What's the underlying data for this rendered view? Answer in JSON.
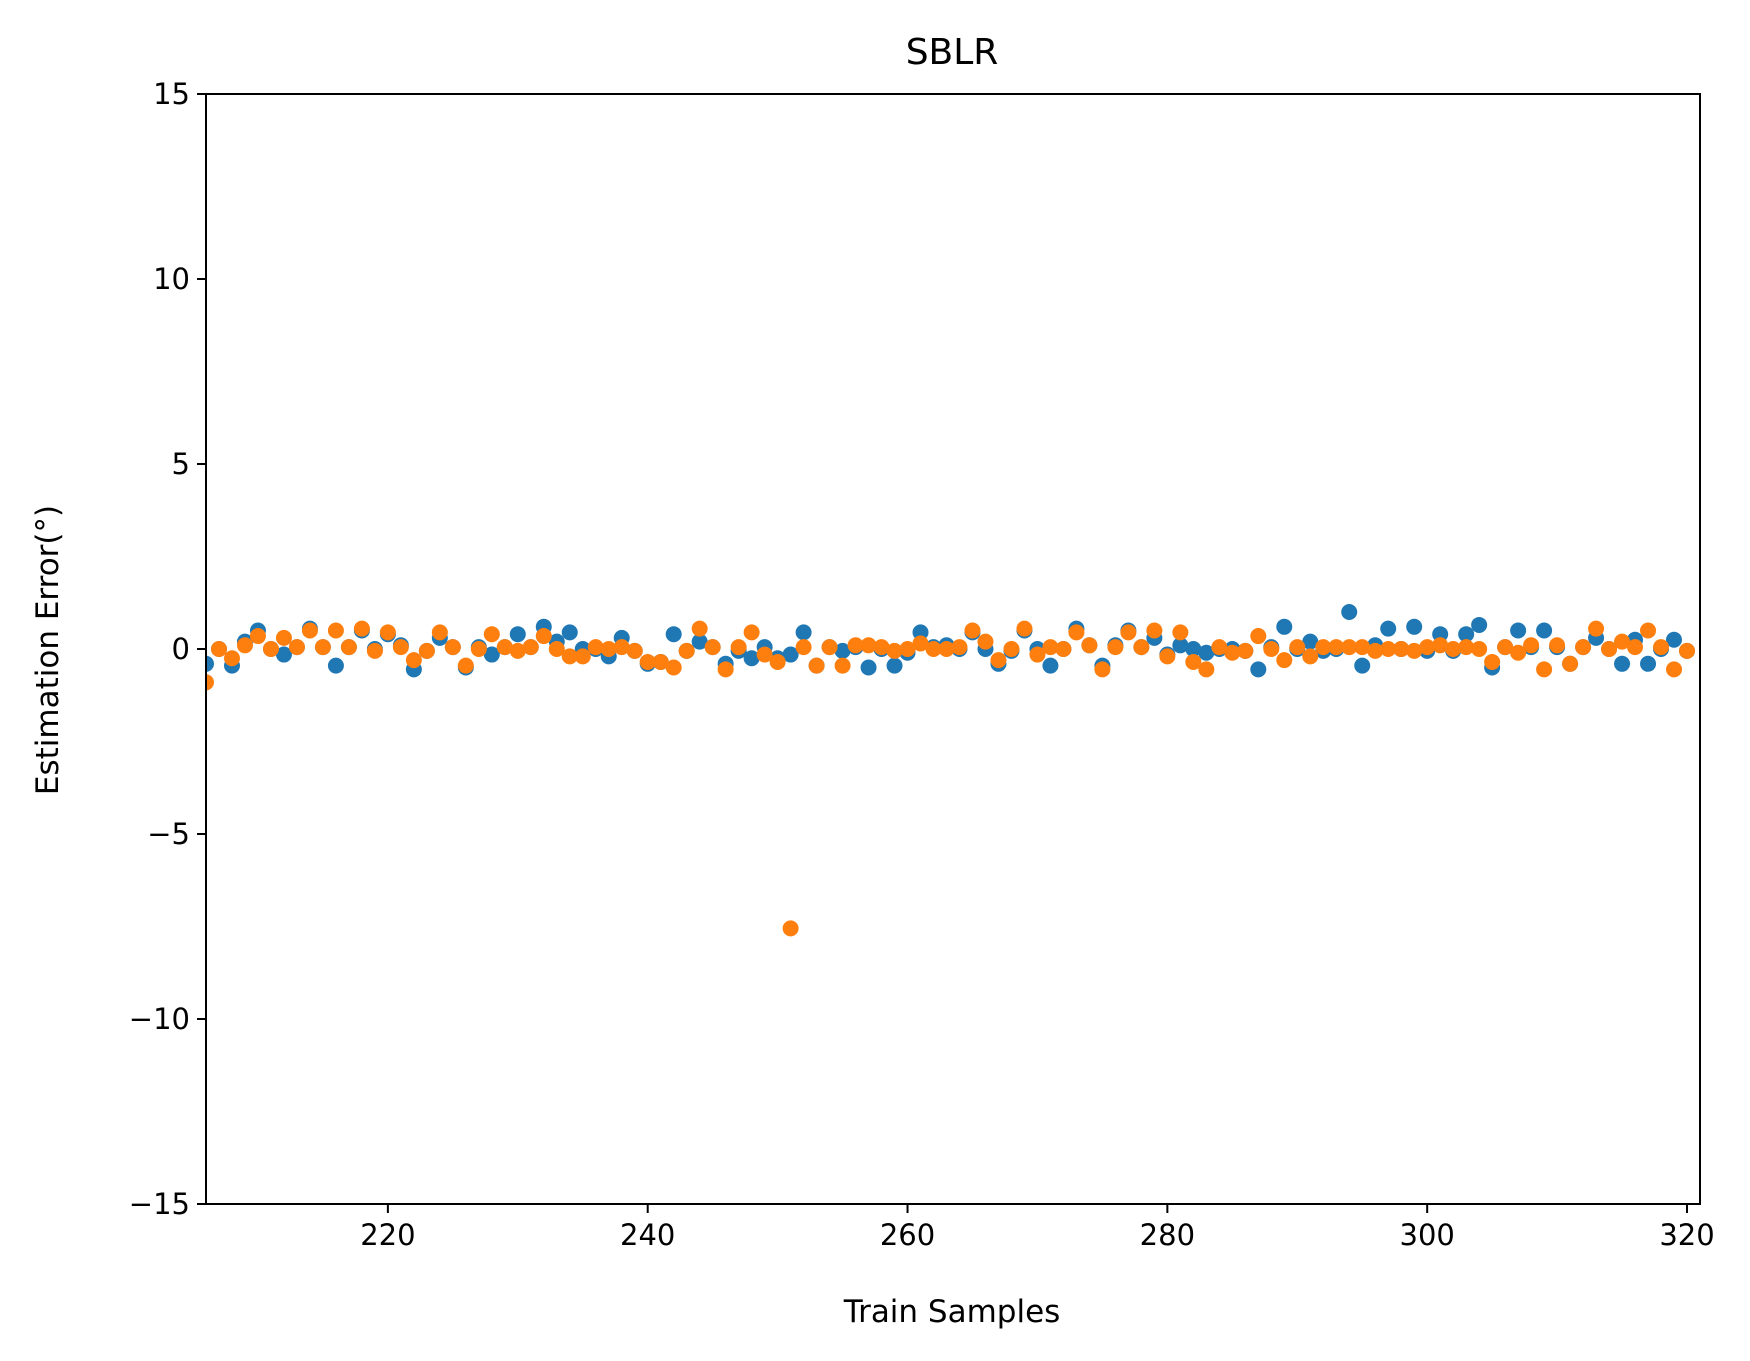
{
  "chart_data": {
    "type": "scatter",
    "title": "SBLR",
    "xlabel": "Train Samples",
    "ylabel": "Estimation Error(°)",
    "xlim": [
      206,
      321
    ],
    "ylim": [
      -15,
      15
    ],
    "x_ticks": [
      220,
      240,
      260,
      280,
      300,
      320
    ],
    "y_ticks": [
      15,
      10,
      5,
      0,
      -5,
      -10,
      -15
    ],
    "x_tick_labels": [
      "220",
      "240",
      "260",
      "280",
      "300",
      "320"
    ],
    "y_tick_labels": [
      "15",
      "10",
      "5",
      "0",
      "−5",
      "−10",
      "−15"
    ],
    "grid": false,
    "legend": false,
    "series": [
      {
        "color": "#1f77b4",
        "x": [
          206,
          207,
          208,
          209,
          210,
          211,
          212,
          213,
          214,
          215,
          216,
          217,
          218,
          219,
          220,
          221,
          222,
          223,
          224,
          225,
          226,
          227,
          228,
          229,
          230,
          231,
          232,
          233,
          234,
          235,
          236,
          237,
          238,
          239,
          240,
          241,
          242,
          243,
          244,
          245,
          246,
          247,
          248,
          249,
          250,
          251,
          252,
          253,
          254,
          255,
          256,
          257,
          258,
          259,
          260,
          261,
          262,
          263,
          264,
          265,
          266,
          267,
          268,
          269,
          270,
          271,
          272,
          273,
          274,
          275,
          276,
          277,
          278,
          279,
          280,
          281,
          282,
          283,
          284,
          285,
          286,
          287,
          288,
          289,
          290,
          291,
          292,
          293,
          294,
          295,
          296,
          297,
          298,
          299,
          300,
          301,
          302,
          303,
          304,
          305,
          306,
          307,
          308,
          309,
          310,
          311,
          312,
          313,
          314,
          315,
          316,
          317,
          318,
          319,
          320
        ],
        "y": [
          -0.4,
          0.0,
          -0.45,
          0.2,
          0.5,
          0.0,
          -0.15,
          0.05,
          0.55,
          0.05,
          -0.45,
          0.05,
          0.5,
          0.0,
          0.4,
          0.1,
          -0.55,
          -0.05,
          0.3,
          0.05,
          -0.5,
          0.05,
          -0.15,
          0.05,
          0.4,
          0.05,
          0.6,
          0.2,
          0.45,
          0.0,
          0.0,
          -0.2,
          0.3,
          -0.05,
          -0.4,
          -0.35,
          0.4,
          -0.05,
          0.2,
          0.05,
          -0.4,
          -0.05,
          -0.25,
          0.05,
          -0.25,
          -0.15,
          0.45,
          -0.45,
          0.05,
          -0.05,
          0.05,
          -0.5,
          0.0,
          -0.45,
          -0.1,
          0.45,
          0.05,
          0.1,
          0.0,
          0.45,
          0.0,
          -0.4,
          -0.05,
          0.5,
          0.0,
          -0.45,
          0.0,
          0.55,
          0.1,
          -0.45,
          0.1,
          0.5,
          0.05,
          0.3,
          -0.15,
          0.1,
          0.0,
          -0.1,
          0.0,
          0.0,
          -0.05,
          -0.55,
          0.05,
          0.6,
          0.0,
          0.2,
          -0.05,
          0.0,
          1.0,
          -0.45,
          0.1,
          0.55,
          0.0,
          0.6,
          -0.05,
          0.4,
          -0.05,
          0.4,
          0.65,
          -0.5,
          0.05,
          0.5,
          0.05,
          0.5,
          0.05,
          -0.4,
          0.05,
          0.3,
          0.0,
          -0.4,
          0.25,
          -0.4,
          0.0,
          0.25,
          -0.05
        ]
      },
      {
        "color": "#ff7f0e",
        "x": [
          206,
          207,
          208,
          209,
          210,
          211,
          212,
          213,
          214,
          215,
          216,
          217,
          218,
          219,
          220,
          221,
          222,
          223,
          224,
          225,
          226,
          227,
          228,
          229,
          230,
          231,
          232,
          233,
          234,
          235,
          236,
          237,
          238,
          239,
          240,
          241,
          242,
          243,
          244,
          245,
          246,
          247,
          248,
          249,
          250,
          251,
          252,
          253,
          254,
          255,
          256,
          257,
          258,
          259,
          260,
          261,
          262,
          263,
          264,
          265,
          266,
          267,
          268,
          269,
          270,
          271,
          272,
          273,
          274,
          275,
          276,
          277,
          278,
          279,
          280,
          281,
          282,
          283,
          284,
          285,
          286,
          287,
          288,
          289,
          290,
          291,
          292,
          293,
          294,
          295,
          296,
          297,
          298,
          299,
          300,
          301,
          302,
          303,
          304,
          305,
          306,
          307,
          308,
          309,
          310,
          311,
          312,
          313,
          314,
          315,
          316,
          317,
          318,
          319,
          320
        ],
        "y": [
          -0.9,
          0.0,
          -0.25,
          0.1,
          0.35,
          0.0,
          0.3,
          0.05,
          0.5,
          0.05,
          0.5,
          0.05,
          0.55,
          -0.05,
          0.45,
          0.05,
          -0.3,
          -0.05,
          0.45,
          0.05,
          -0.45,
          0.0,
          0.4,
          0.05,
          -0.05,
          0.05,
          0.35,
          0.0,
          -0.2,
          -0.2,
          0.05,
          0.0,
          0.05,
          -0.05,
          -0.35,
          -0.35,
          -0.5,
          -0.05,
          0.55,
          0.05,
          -0.55,
          0.05,
          0.45,
          -0.15,
          -0.35,
          -7.55,
          0.05,
          -0.45,
          0.05,
          -0.45,
          0.1,
          0.1,
          0.05,
          -0.05,
          0.0,
          0.15,
          0.0,
          0.0,
          0.05,
          0.5,
          0.2,
          -0.3,
          0.0,
          0.55,
          -0.15,
          0.05,
          0.0,
          0.45,
          0.1,
          -0.55,
          0.05,
          0.45,
          0.05,
          0.5,
          -0.2,
          0.45,
          -0.35,
          -0.55,
          0.05,
          -0.1,
          -0.05,
          0.35,
          0.0,
          -0.3,
          0.05,
          -0.2,
          0.05,
          0.05,
          0.05,
          0.05,
          -0.05,
          0.0,
          0.0,
          -0.05,
          0.05,
          0.1,
          0.0,
          0.05,
          0.0,
          -0.35,
          0.05,
          -0.1,
          0.1,
          -0.55,
          0.1,
          -0.4,
          0.05,
          0.55,
          0.0,
          0.2,
          0.05,
          0.5,
          0.05,
          -0.55,
          -0.05
        ]
      }
    ]
  }
}
